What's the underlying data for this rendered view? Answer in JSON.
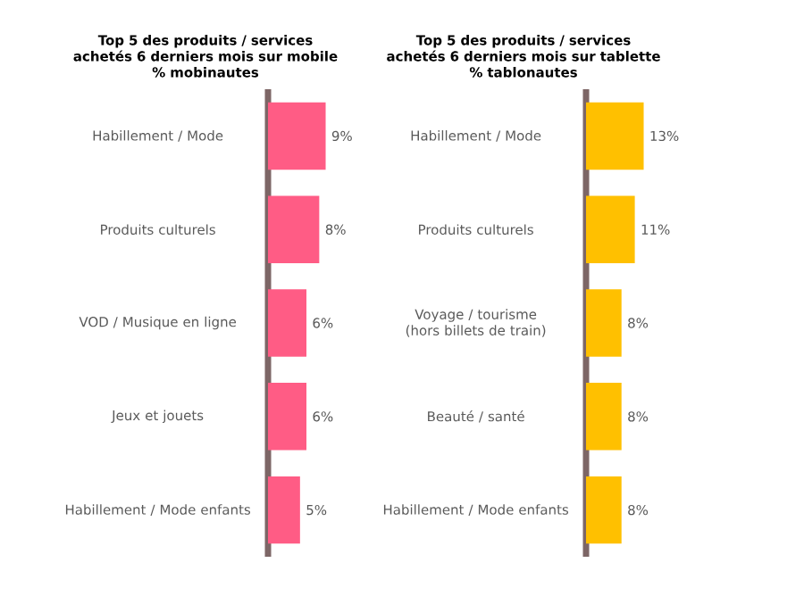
{
  "chart_data": [
    {
      "type": "bar",
      "orientation": "horizontal",
      "title": "Top 5 des produits / services achetés 6 derniers mois sur mobile",
      "subtitle": "% mobinautes",
      "categories": [
        "Habillement / Mode",
        "Produits culturels",
        "VOD / Musique en ligne",
        "Jeux et jouets",
        "Habillement / Mode enfants"
      ],
      "values": [
        9,
        8,
        6,
        6,
        5
      ],
      "value_labels": [
        "9%",
        "8%",
        "6%",
        "6%",
        "5%"
      ],
      "color": "#ff5c85"
    },
    {
      "type": "bar",
      "orientation": "horizontal",
      "title": "Top 5 des produits / services achetés 6 derniers mois sur tablette",
      "subtitle": "% tablonautes",
      "categories": [
        "Habillement / Mode",
        "Produits culturels",
        "Voyage / tourisme (hors billets de train)",
        "Beauté / santé",
        "Habillement / Mode enfants"
      ],
      "values": [
        13,
        11,
        8,
        8,
        8
      ],
      "value_labels": [
        "13%",
        "11%",
        "8%",
        "8%",
        "8%"
      ],
      "color": "#ffc000"
    }
  ]
}
